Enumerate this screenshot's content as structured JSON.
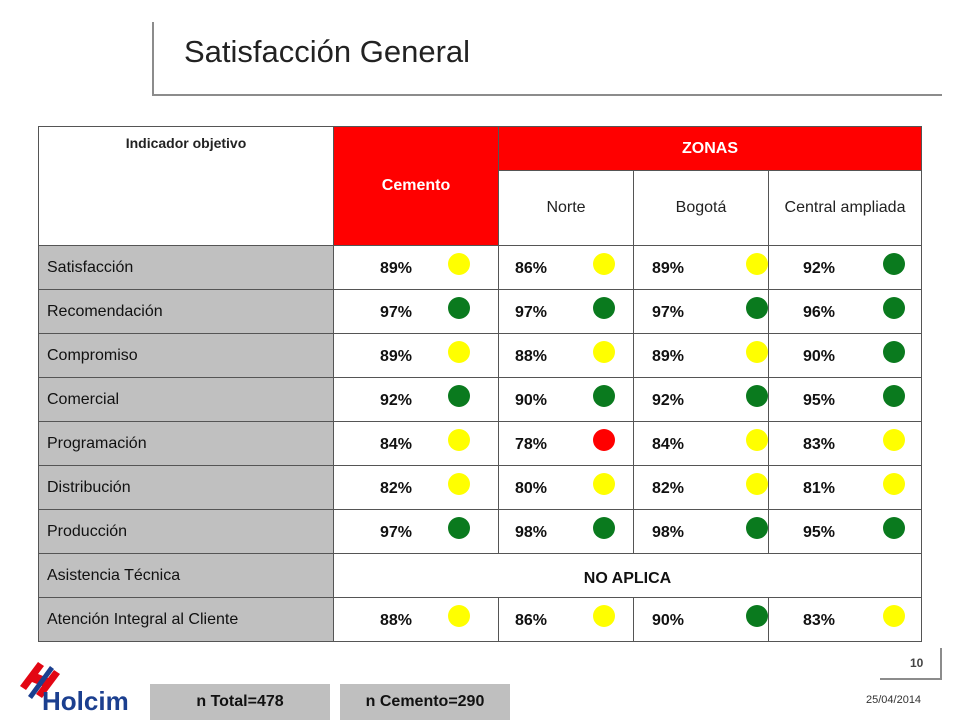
{
  "slide": {
    "title": "Satisfacción General",
    "page_number": "10",
    "date": "25/04/2014"
  },
  "table": {
    "header_indicator": "Indicador objetivo",
    "header_cement": "Cemento",
    "header_zones": "ZONAS",
    "zones": [
      "Norte",
      "Bogotá",
      "Central ampliada"
    ],
    "rows": [
      {
        "label": "Satisfacción",
        "values": [
          "89%",
          "86%",
          "89%",
          "92%"
        ],
        "status": [
          "yellow",
          "yellow",
          "yellow",
          "green"
        ]
      },
      {
        "label": "Recomendación",
        "values": [
          "97%",
          "97%",
          "97%",
          "96%"
        ],
        "status": [
          "green",
          "green",
          "green",
          "green"
        ]
      },
      {
        "label": "Compromiso",
        "values": [
          "89%",
          "88%",
          "89%",
          "90%"
        ],
        "status": [
          "yellow",
          "yellow",
          "yellow",
          "green"
        ]
      },
      {
        "label": "Comercial",
        "values": [
          "92%",
          "90%",
          "92%",
          "95%"
        ],
        "status": [
          "green",
          "green",
          "green",
          "green"
        ]
      },
      {
        "label": "Programación",
        "values": [
          "84%",
          "78%",
          "84%",
          "83%"
        ],
        "status": [
          "yellow",
          "red",
          "yellow",
          "yellow"
        ]
      },
      {
        "label": "Distribución",
        "values": [
          "82%",
          "80%",
          "82%",
          "81%"
        ],
        "status": [
          "yellow",
          "yellow",
          "yellow",
          "yellow"
        ]
      },
      {
        "label": "Producción",
        "values": [
          "97%",
          "98%",
          "98%",
          "95%"
        ],
        "status": [
          "green",
          "green",
          "green",
          "green"
        ]
      },
      {
        "label": "Asistencia Técnica",
        "na": "NO APLICA"
      },
      {
        "label": "Atención Integral al Cliente",
        "values": [
          "88%",
          "86%",
          "90%",
          "83%"
        ],
        "status": [
          "yellow",
          "yellow",
          "green",
          "yellow"
        ]
      }
    ]
  },
  "footer": {
    "n_total": "n Total=478",
    "n_cemento": "n Cemento=290"
  },
  "logo": {
    "name": "Holcim"
  },
  "colors": {
    "green": "#0a7a1e",
    "yellow": "#ffff00",
    "red": "#ff0000",
    "accent": "#ff0000"
  }
}
